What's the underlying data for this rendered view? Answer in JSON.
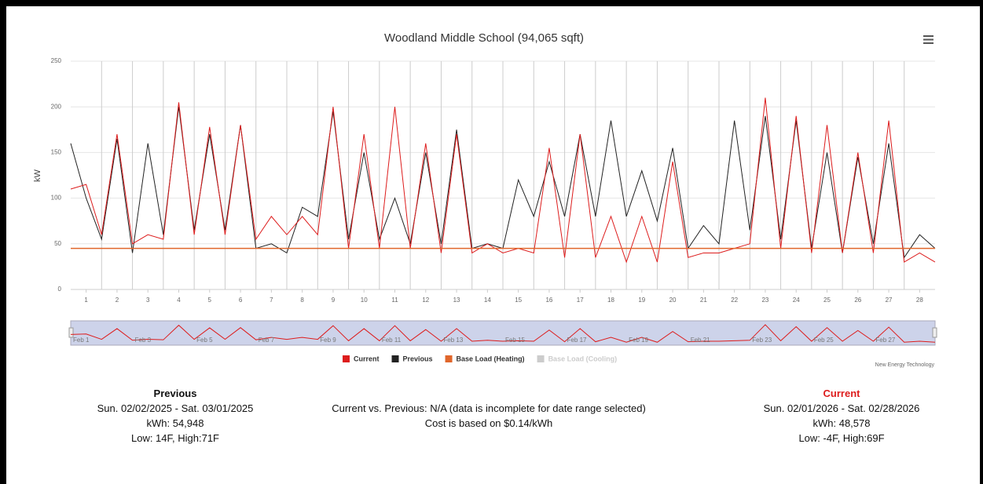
{
  "chart_data": {
    "type": "line",
    "title": "Woodland Middle School (94,065 sqft)",
    "y_label": "kW",
    "x": [
      0.5,
      1,
      1.5,
      2,
      2.5,
      3,
      3.5,
      4,
      4.5,
      5,
      5.5,
      6,
      6.5,
      7,
      7.5,
      8,
      8.5,
      9,
      9.5,
      10,
      10.5,
      11,
      11.5,
      12,
      12.5,
      13,
      13.5,
      14,
      14.5,
      15,
      15.5,
      16,
      16.5,
      17,
      17.5,
      18,
      18.5,
      19,
      19.5,
      20,
      20.5,
      21,
      21.5,
      22,
      22.5,
      23,
      23.5,
      24,
      24.5,
      25,
      25.5,
      26,
      26.5,
      27,
      27.5,
      28,
      28.5
    ],
    "xlim": [
      0.5,
      28.5
    ],
    "xticks": [
      1,
      2,
      3,
      4,
      5,
      6,
      7,
      8,
      9,
      10,
      11,
      12,
      13,
      14,
      15,
      16,
      17,
      18,
      19,
      20,
      21,
      22,
      23,
      24,
      25,
      26,
      27,
      28
    ],
    "ylim": [
      0,
      250
    ],
    "yticks": [
      0,
      50,
      100,
      150,
      200,
      250
    ],
    "grid": true,
    "series": [
      {
        "name": "Current",
        "color": "#dd1c1c",
        "values": [
          110,
          115,
          60,
          170,
          50,
          60,
          55,
          205,
          60,
          178,
          60,
          180,
          55,
          80,
          60,
          80,
          60,
          200,
          45,
          170,
          45,
          200,
          45,
          160,
          40,
          170,
          40,
          50,
          40,
          45,
          40,
          155,
          35,
          170,
          35,
          80,
          30,
          80,
          30,
          140,
          35,
          40,
          40,
          45,
          50,
          210,
          45,
          190,
          40,
          180,
          40,
          150,
          40,
          185,
          30,
          40,
          30
        ]
      },
      {
        "name": "Previous",
        "color": "#222222",
        "values": [
          160,
          100,
          55,
          165,
          40,
          160,
          60,
          200,
          65,
          170,
          65,
          180,
          45,
          50,
          40,
          90,
          80,
          195,
          55,
          150,
          55,
          100,
          50,
          150,
          50,
          175,
          45,
          50,
          45,
          120,
          80,
          140,
          80,
          170,
          80,
          185,
          80,
          130,
          75,
          155,
          45,
          70,
          50,
          185,
          65,
          190,
          55,
          185,
          45,
          150,
          40,
          145,
          50,
          160,
          35,
          60,
          45
        ]
      },
      {
        "name": "Base Load (Heating)",
        "color": "#e0662b",
        "x": [
          0.5,
          28.5
        ],
        "values": [
          45,
          45
        ]
      },
      {
        "name": "Base Load (Cooling)",
        "color": "#cccccc",
        "visible": false
      }
    ],
    "navigator": {
      "labels": [
        "Feb 1",
        "Feb 3",
        "Feb 5",
        "Feb 7",
        "Feb 9",
        "Feb 11",
        "Feb 13",
        "Feb 15",
        "Feb 17",
        "Feb 19",
        "Feb 21",
        "Feb 23",
        "Feb 25",
        "Feb 27"
      ],
      "positions": [
        0.5,
        2.5,
        4.5,
        6.5,
        8.5,
        10.5,
        12.5,
        14.5,
        16.5,
        18.5,
        20.5,
        22.5,
        24.5,
        26.5
      ]
    },
    "credit": "New Energy Technology"
  },
  "summary": {
    "previous": {
      "heading": "Previous",
      "range": "Sun. 02/02/2025 - Sat. 03/01/2025",
      "kwh": "kWh: 54,948",
      "temps": "Low: 14F, High:71F"
    },
    "comparison": [
      "Current vs. Previous: N/A (data is incomplete for date range selected)",
      "Cost is based on $0.14/kWh"
    ],
    "current": {
      "heading": "Current",
      "range": "Sun. 02/01/2026 - Sat. 02/28/2026",
      "kwh": "kWh: 48,578",
      "temps": "Low: -4F, High:69F"
    }
  }
}
